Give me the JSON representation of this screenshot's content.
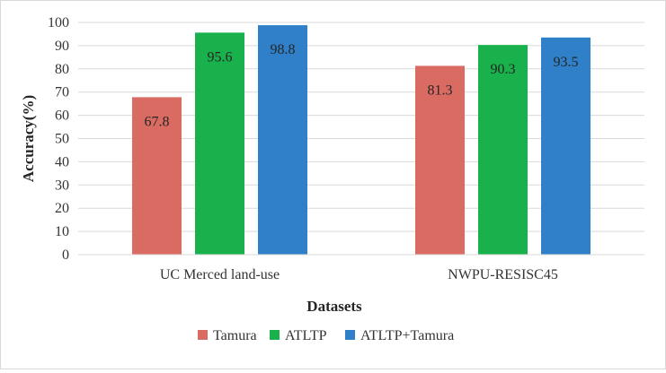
{
  "chart_data": {
    "type": "bar",
    "categories": [
      "UC Merced land-use",
      "NWPU-RESISC45"
    ],
    "series": [
      {
        "name": "Tamura",
        "values": [
          67.8,
          81.3
        ],
        "color": "#d96b63"
      },
      {
        "name": "ATLTP",
        "values": [
          95.6,
          90.3
        ],
        "color": "#18b14b"
      },
      {
        "name": "ATLTP+Tamura",
        "values": [
          98.8,
          93.5
        ],
        "color": "#2f80c8"
      }
    ],
    "data_labels": [
      [
        "67.8",
        "81.3"
      ],
      [
        "95.6",
        "90.3"
      ],
      [
        "98.8",
        "93.5"
      ]
    ],
    "xlabel": "Datasets",
    "ylabel": "Accuracy(%)",
    "ylim": [
      0,
      100
    ],
    "yticks": [
      0,
      10,
      20,
      30,
      40,
      50,
      60,
      70,
      80,
      90,
      100
    ],
    "grid": true,
    "gridline_color": "#d9d9d9",
    "legend_position": "bottom"
  }
}
